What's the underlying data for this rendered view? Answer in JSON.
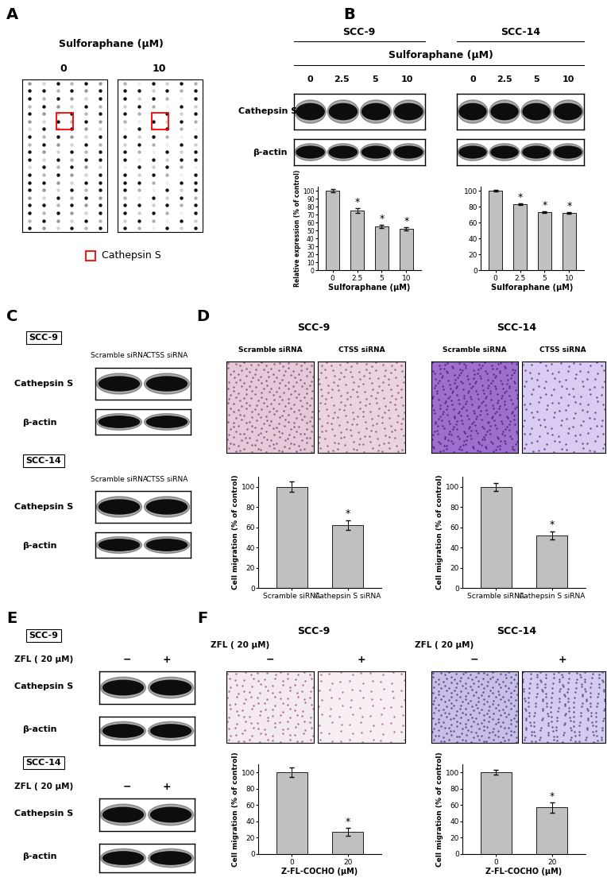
{
  "panels": {
    "A": {
      "letter": "A",
      "treatment": "Sulforaphane (μM)",
      "doses": [
        "0",
        "10"
      ],
      "legend": "Cathepsin S"
    },
    "B": {
      "letter": "B",
      "treatment": "Sulforaphane (μM)",
      "cell_lines": [
        "SCC-9",
        "SCC-14"
      ],
      "lanes": [
        "0",
        "2.5",
        "5",
        "10"
      ],
      "bands": [
        "Cathepsin S",
        "β-actin"
      ]
    },
    "C": {
      "letter": "C",
      "cell_lines": [
        "SCC-9",
        "SCC-14"
      ],
      "lanes": [
        "Scramble siRNA",
        "CTSS siRNA"
      ],
      "bands": [
        "Cathepsin S",
        "β-actin"
      ]
    },
    "D": {
      "letter": "D",
      "cell_lines": [
        "SCC-9",
        "SCC-14"
      ],
      "lanes": [
        "Scramble siRNA",
        "CTSS siRNA"
      ]
    },
    "E": {
      "letter": "E",
      "cell_lines": [
        "SCC-9",
        "SCC-14"
      ],
      "treatment": "ZFL ( 20 μM)",
      "lanes": [
        "−",
        "+"
      ],
      "bands": [
        "Cathepsin S",
        "β-actin"
      ]
    },
    "F": {
      "letter": "F",
      "cell_lines": [
        "SCC-9",
        "SCC-14"
      ],
      "treatment": "ZFL ( 20 μM)",
      "lanes": [
        "−",
        "+"
      ]
    }
  },
  "chart_data": [
    {
      "type": "bar",
      "categories": [
        "0",
        "2.5",
        "5",
        "10"
      ],
      "values": [
        100,
        75,
        55,
        52
      ],
      "errors": [
        2,
        3,
        2,
        2
      ],
      "color": "#c0c0c0",
      "ylim": [
        0,
        105
      ],
      "yticks": [
        0,
        10,
        20,
        30,
        40,
        50,
        60,
        70,
        80,
        90,
        100
      ],
      "y_label": "Relative expression (% of control)",
      "x_label": "Sulforaphane (μM)",
      "annotations": [
        {
          "category": "2.5",
          "text": "*"
        },
        {
          "category": "5",
          "text": "*"
        },
        {
          "category": "10",
          "text": "*"
        }
      ]
    },
    {
      "type": "bar",
      "categories": [
        "0",
        "2.5",
        "5",
        "10"
      ],
      "values": [
        100,
        83,
        73,
        72
      ],
      "errors": [
        1,
        1,
        1,
        1
      ],
      "color": "#c0c0c0",
      "ylim": [
        0,
        105
      ],
      "yticks": [
        0,
        20,
        40,
        60,
        80,
        100
      ],
      "x_label": "Sulforaphane (μM)",
      "annotations": [
        {
          "category": "2.5",
          "text": "*"
        },
        {
          "category": "5",
          "text": "*"
        },
        {
          "category": "10",
          "text": "*"
        }
      ]
    },
    {
      "type": "bar",
      "categories": [
        "Scramble siRNA",
        "Cathepsin S siRNA"
      ],
      "values": [
        100,
        62
      ],
      "errors": [
        5,
        5
      ],
      "color": "#c0c0c0",
      "ylim": [
        0,
        110
      ],
      "yticks": [
        0,
        20,
        40,
        60,
        80,
        100
      ],
      "y_label": "Cell migration (% of control)",
      "annotations": [
        {
          "category": "Cathepsin S siRNA",
          "text": "*"
        }
      ]
    },
    {
      "type": "bar",
      "categories": [
        "Scramble siRNA",
        "Cathepsin S siRNA"
      ],
      "values": [
        100,
        52
      ],
      "errors": [
        4,
        4
      ],
      "color": "#c0c0c0",
      "ylim": [
        0,
        110
      ],
      "yticks": [
        0,
        20,
        40,
        60,
        80,
        100
      ],
      "y_label": "Cell migration (% of control)",
      "annotations": [
        {
          "category": "Cathepsin S siRNA",
          "text": "*"
        }
      ]
    },
    {
      "type": "bar",
      "categories": [
        "0",
        "20"
      ],
      "values": [
        100,
        27
      ],
      "errors": [
        6,
        5
      ],
      "color": "#c0c0c0",
      "ylim": [
        0,
        110
      ],
      "yticks": [
        0,
        20,
        40,
        60,
        80,
        100
      ],
      "y_label": "Cell migration (% of control)",
      "x_label": "Z-FL-COCHO (μM)",
      "annotations": [
        {
          "category": "20",
          "text": "*"
        }
      ]
    },
    {
      "type": "bar",
      "categories": [
        "0",
        "20"
      ],
      "values": [
        100,
        57
      ],
      "errors": [
        3,
        6
      ],
      "color": "#c0c0c0",
      "ylim": [
        0,
        110
      ],
      "yticks": [
        0,
        20,
        40,
        60,
        80,
        100
      ],
      "y_label": "Cell migration (% of control)",
      "x_label": "Z-FL-COCHO (μM)",
      "annotations": [
        {
          "category": "20",
          "text": "*"
        }
      ]
    }
  ]
}
